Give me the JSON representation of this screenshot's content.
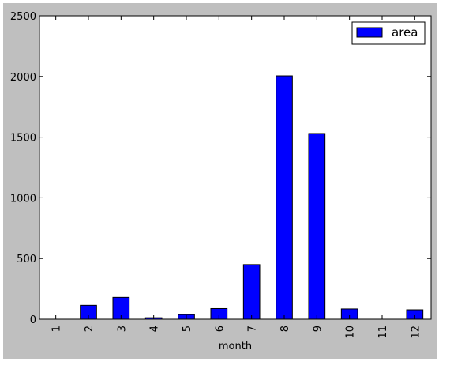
{
  "chart_data": {
    "type": "bar",
    "xlabel": "month",
    "ylabel": "",
    "title": "",
    "categories": [
      "1",
      "2",
      "3",
      "4",
      "5",
      "6",
      "7",
      "8",
      "9",
      "10",
      "11",
      "12"
    ],
    "series": [
      {
        "name": "area",
        "color": "#0000ff",
        "values": [
          0,
          115,
          180,
          12,
          38,
          88,
          450,
          2005,
          1530,
          85,
          0,
          78
        ]
      }
    ],
    "ylim": [
      0,
      2500
    ],
    "yticks": [
      "0",
      "500",
      "1000",
      "1500",
      "2000",
      "2500"
    ],
    "legend_position": "top-right",
    "grid": false
  }
}
